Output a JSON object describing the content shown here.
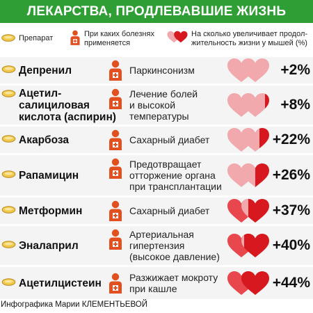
{
  "title": "ЛЕКАРСТВА, ПРОДЛЕВАВШИЕ ЖИЗНЬ",
  "legend": {
    "drug": "Препарат",
    "disease": [
      "При каких болезнях",
      "применяется"
    ],
    "lifespan": [
      "На сколько увеличивает продол-",
      "жительность жизни у мышей (%)"
    ]
  },
  "icons": {
    "drug": "pill-icon",
    "disease": "doctor-icon",
    "lifespan": "hearts-icon"
  },
  "colors": {
    "title_bg": "#2f9e35",
    "pill": "#f2c84b",
    "doctor": "#e2501f",
    "heart_light": "#f1a9ad",
    "heart_dark": "#d7191f",
    "row_bg": "#f4f4f4"
  },
  "rows": [
    {
      "drug": [
        "Депренил"
      ],
      "disease": [
        "Паркинсонизм"
      ],
      "percent": "+2%",
      "increase": 2
    },
    {
      "drug": [
        "Ацетил-",
        "салициловая",
        "кислота (аспирин)"
      ],
      "disease": [
        "Лечение болей",
        "и высокой",
        "температуры"
      ],
      "percent": "+8%",
      "increase": 8
    },
    {
      "drug": [
        "Акарбоза"
      ],
      "disease": [
        "Сахарный диабет"
      ],
      "percent": "+22%",
      "increase": 22
    },
    {
      "drug": [
        "Рапамицин"
      ],
      "disease": [
        "Предотвращает",
        "отторжение органа",
        "при трансплантации"
      ],
      "percent": "+26%",
      "increase": 26
    },
    {
      "drug": [
        "Метформин"
      ],
      "disease": [
        "Сахарный диабет"
      ],
      "percent": "+37%",
      "increase": 37
    },
    {
      "drug": [
        "Эналаприл"
      ],
      "disease": [
        "Артериальная",
        "гипертензия",
        "(высокое давление)"
      ],
      "percent": "+40%",
      "increase": 40
    },
    {
      "drug": [
        "Ацетилцистеин"
      ],
      "disease": [
        "Разжижает мокроту",
        "при кашле"
      ],
      "percent": "+44%",
      "increase": 44
    }
  ],
  "footer": "Инфографика Марии КЛЕМЕНТЬЕВОЙ"
}
